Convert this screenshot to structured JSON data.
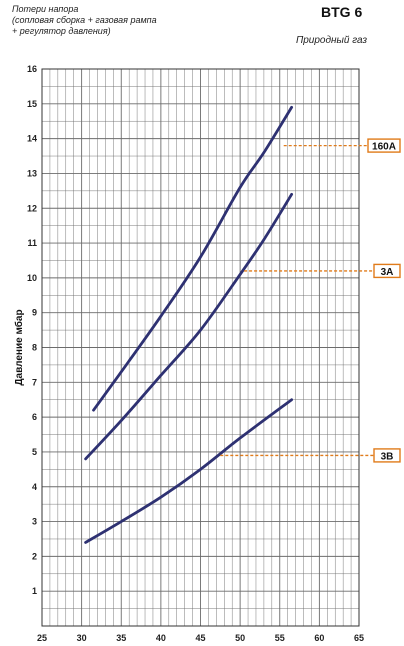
{
  "header": {
    "subtitle_lines": [
      "Потери напора",
      "(сопловая сборка + газовая рампа",
      "+ регулятор давления)"
    ],
    "model": "BTG 6",
    "fuel": "Природный газ"
  },
  "chart_data": {
    "type": "line",
    "title": "BTG 6",
    "subtitle": "Потери напора (сопловая сборка + газовая рампа + регулятор давления)",
    "xlabel": "",
    "ylabel": "Давление мбар",
    "xlim": [
      25,
      65
    ],
    "ylim": [
      0,
      16
    ],
    "x_ticks": [
      25,
      30,
      35,
      40,
      45,
      50,
      55,
      60,
      65
    ],
    "y_ticks": [
      0,
      1,
      2,
      3,
      4,
      5,
      6,
      7,
      8,
      9,
      10,
      11,
      12,
      13,
      14,
      15,
      16
    ],
    "grid": true,
    "series": [
      {
        "name": "160A",
        "x": [
          31.5,
          35,
          40,
          45,
          50,
          53,
          56.5
        ],
        "y": [
          6.2,
          7.3,
          8.9,
          10.6,
          12.6,
          13.6,
          14.9
        ]
      },
      {
        "name": "3A",
        "x": [
          30.5,
          35,
          40,
          45,
          50,
          53,
          56.5
        ],
        "y": [
          4.8,
          5.9,
          7.2,
          8.5,
          10.1,
          11.1,
          12.4
        ]
      },
      {
        "name": "3B",
        "x": [
          30.5,
          35,
          40,
          45,
          50,
          56.5
        ],
        "y": [
          2.4,
          3.0,
          3.7,
          4.5,
          5.4,
          6.5
        ]
      }
    ],
    "annotations": [
      {
        "label": "160A",
        "x": 55.5,
        "y": 13.8
      },
      {
        "label": "3A",
        "x": 50.5,
        "y": 10.2
      },
      {
        "label": "3B",
        "x": 47.5,
        "y": 4.9
      }
    ],
    "colors": {
      "line": "#2e3172",
      "annotation": "#e07b1a",
      "grid": "#6b6b6b",
      "background": "#ffffff"
    }
  }
}
